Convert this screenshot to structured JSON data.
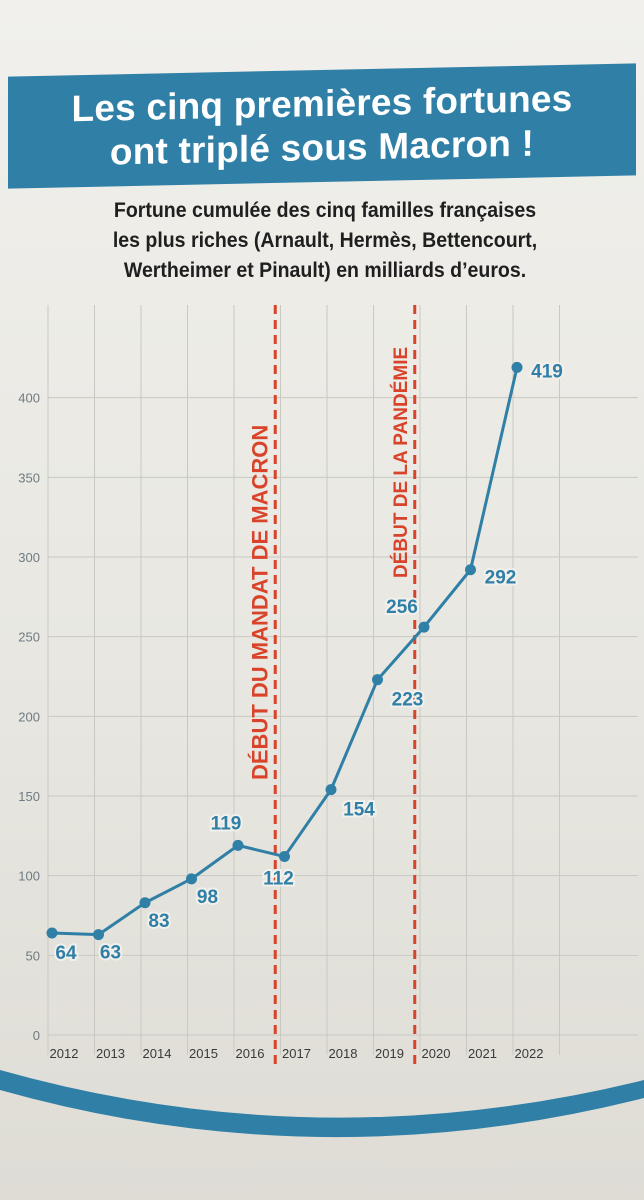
{
  "title": {
    "line1": "Les cinq premières fortunes",
    "line2": "ont triplé sous Macron !"
  },
  "subtitle": {
    "line1": "Fortune cumulée des cinq familles françaises",
    "line2": "les plus riches (Arnault, Hermès, Bettencourt,",
    "line3": "Wertheimer et Pinault) en milliards d’euros."
  },
  "colors": {
    "line": "#2f7fa6",
    "annotation": "#d8432a",
    "banner": "#2f7fa6"
  },
  "chart_data": {
    "type": "line",
    "x": [
      "2012",
      "2013",
      "2014",
      "2015",
      "2016",
      "2017",
      "2018",
      "2019",
      "2020",
      "2021",
      "2022"
    ],
    "values": [
      64,
      63,
      83,
      98,
      119,
      112,
      154,
      223,
      256,
      292,
      419
    ],
    "data_labels": [
      "64",
      "63",
      "83",
      "98",
      "119",
      "112",
      "154",
      "223",
      "256",
      "292",
      "419"
    ],
    "y_ticks": [
      "0",
      "50",
      "100",
      "150",
      "200",
      "250",
      "300",
      "350",
      "400"
    ],
    "ylim": [
      0,
      450
    ],
    "grid": true,
    "annotations": [
      {
        "text": "DÉBUT DU MANDAT DE MACRON",
        "x_between": [
          "2016",
          "2017"
        ]
      },
      {
        "text": "DÉBUT DE LA PANDÉMIE",
        "x_between": [
          "2019",
          "2020"
        ]
      }
    ]
  }
}
